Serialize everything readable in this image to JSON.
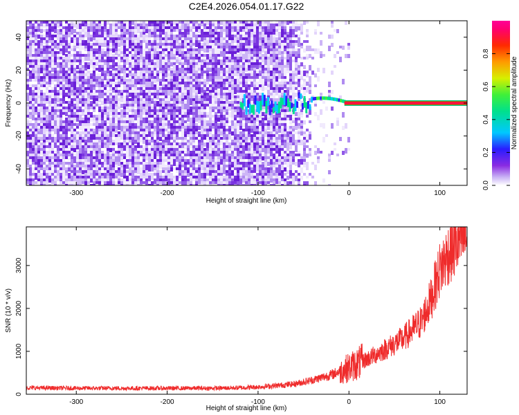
{
  "title": "C2E4.2026.054.01.17.G22",
  "chart_data": [
    {
      "type": "heatmap",
      "xlabel": "Height of straight line (km)",
      "ylabel": "Frequency (Hz)",
      "xlim": [
        -355,
        130
      ],
      "ylim": [
        -50,
        50
      ],
      "xticks": [
        "-300",
        "-200",
        "-100",
        "0",
        "100"
      ],
      "yticks": [
        "-40",
        "-20",
        "0",
        "20",
        "40"
      ],
      "colorbar": {
        "label": "Normalized spectral amplitude",
        "range": [
          0,
          1
        ],
        "ticks": [
          "0.0",
          "0.2",
          "0.4",
          "0.6",
          "0.8"
        ],
        "colormap": "rainbow (white-violet-blue-cyan-green-yellow-orange-red-magenta)"
      },
      "features": {
        "noise_region_x": [
          -355,
          -40
        ],
        "signal_onset_x": -120,
        "carrier_frequency_hz": 0,
        "carrier_peak_frequency_hz_near_x_minus_30": 3,
        "background_amplitude": 0.25,
        "carrier_amplitude_above_x0": 0.9
      }
    },
    {
      "type": "line",
      "xlabel": "Height of straight line (km)",
      "ylabel": "SNR (10 * v/v)",
      "xlim": [
        -355,
        130
      ],
      "ylim": [
        0,
        3900
      ],
      "xticks": [
        "-300",
        "-200",
        "-100",
        "0",
        "100"
      ],
      "yticks": [
        "0",
        "1000",
        "2000",
        "3000"
      ],
      "grid": false,
      "color": "#ef2b2b",
      "x": [
        -355,
        -300,
        -250,
        -200,
        -150,
        -120,
        -100,
        -80,
        -60,
        -40,
        -20,
        0,
        20,
        40,
        60,
        80,
        90,
        100,
        110,
        120,
        130
      ],
      "y": [
        150,
        140,
        140,
        140,
        140,
        150,
        170,
        200,
        240,
        330,
        450,
        620,
        820,
        1050,
        1300,
        1700,
        2200,
        2900,
        3300,
        3550,
        3700
      ]
    }
  ]
}
